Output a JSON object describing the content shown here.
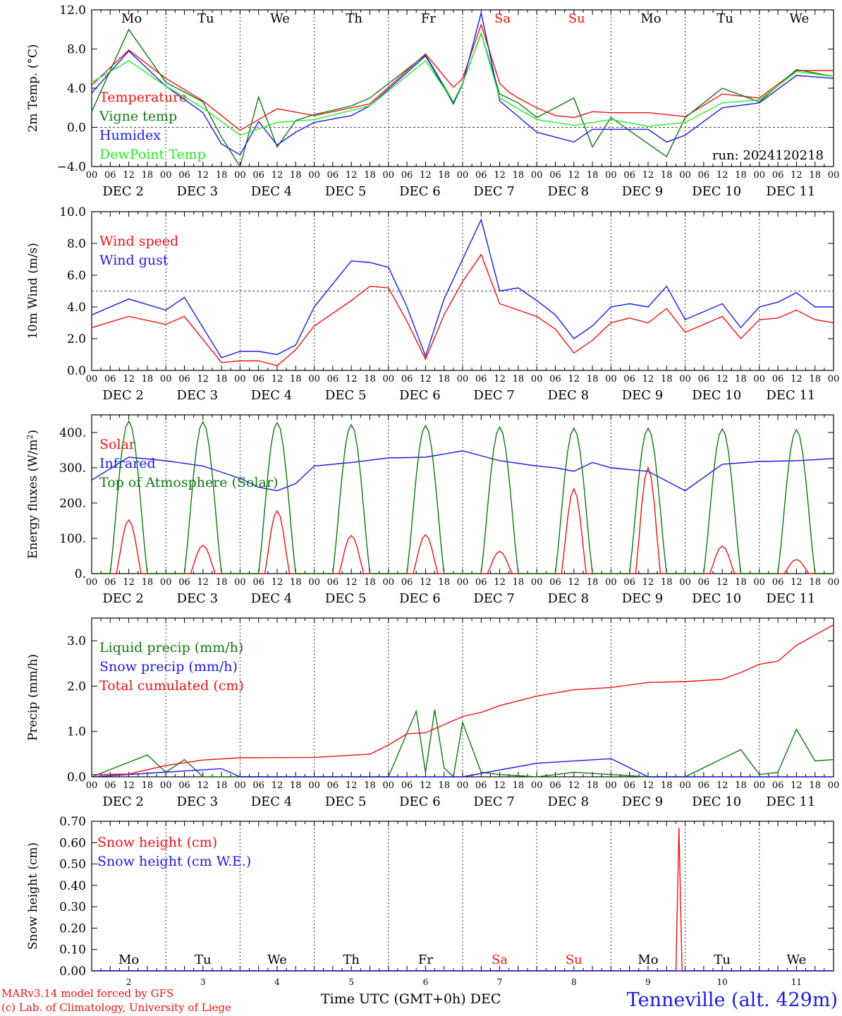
{
  "meta": {
    "run_label": "run: 2024120218",
    "x_axis_label": "Time UTC (GMT+0h) DEC",
    "model_credit": "MARv3.14 model forced by GFS",
    "lab_credit": "(c) Lab. of Climatology, University of Liege",
    "station": "Tenneville (alt. 429m)",
    "colors": {
      "red": "#ee1111",
      "blue": "#1a1ae6",
      "green": "#117711",
      "lightgreen": "#22ee22",
      "weekend": "#ee1111"
    }
  },
  "chart_data": {
    "type": "line",
    "time_axis": {
      "days": [
        2,
        3,
        4,
        5,
        6,
        7,
        8,
        9,
        10,
        11
      ],
      "day_labels": [
        "DEC  2",
        "DEC  3",
        "DEC  4",
        "DEC  5",
        "DEC  6",
        "DEC  7",
        "DEC  8",
        "DEC  9",
        "DEC 10",
        "DEC 11"
      ],
      "weekday_labels": [
        "Mo",
        "Tu",
        "We",
        "Th",
        "Fr",
        "Sa",
        "Su",
        "Mo",
        "Tu",
        "We"
      ],
      "weekend_flags": [
        false,
        false,
        false,
        false,
        false,
        true,
        true,
        false,
        false,
        false
      ],
      "hour_labels": [
        "00",
        "06",
        "12",
        "18"
      ],
      "bottom_day_numbers": [
        "2",
        "3",
        "4",
        "5",
        "6",
        "7",
        "8",
        "9",
        "10",
        "11"
      ]
    },
    "panels": [
      {
        "ylabel": "2m Temp. (°C)",
        "ylim": [
          -4,
          12
        ],
        "yticks": [
          "−4.0",
          "0.0",
          "4.0",
          "8.0",
          "12.0"
        ],
        "ytick_values": [
          -4,
          0,
          4,
          8,
          12
        ],
        "reference_line": 0,
        "series": [
          {
            "name": "Temperature",
            "color": "#ee1111",
            "x": [
              0,
              12,
              24,
              36,
              48,
              60,
              72,
              90,
              108,
              117,
              120,
              126,
              132,
              135,
              138,
              144,
              150,
              156,
              162,
              168,
              180,
              192,
              204,
              216,
              228,
              240
            ],
            "y": [
              4.3,
              7.9,
              5.0,
              2.7,
              -0.3,
              1.9,
              1.2,
              2.4,
              7.5,
              4.1,
              5.0,
              10.5,
              4.5,
              3.6,
              3.0,
              2.0,
              1.2,
              1.0,
              1.6,
              1.5,
              1.5,
              1.1,
              3.4,
              3.0,
              5.8,
              5.8
            ]
          },
          {
            "name": "Vigne temp",
            "color": "#117711",
            "x": [
              0,
              12,
              24,
              36,
              42,
              48,
              54,
              60,
              66,
              72,
              84,
              90,
              108,
              117,
              120,
              126,
              132,
              138,
              144,
              156,
              162,
              168,
              186,
              192,
              204,
              216,
              228,
              240
            ],
            "y": [
              1.6,
              10.0,
              4.6,
              2.6,
              -1.0,
              -4.0,
              3.1,
              -2.0,
              0.7,
              1.3,
              2.2,
              3.0,
              7.4,
              2.6,
              4.5,
              9.6,
              3.4,
              2.5,
              1.0,
              3.0,
              -2.0,
              1.0,
              -3.0,
              1.0,
              4.0,
              2.6,
              5.9,
              5.2
            ]
          },
          {
            "name": "Humidex",
            "color": "#1a1ae6",
            "x": [
              0,
              12,
              24,
              36,
              42,
              48,
              54,
              60,
              66,
              72,
              84,
              90,
              108,
              117,
              120,
              126,
              132,
              144,
              156,
              162,
              168,
              180,
              186,
              192,
              204,
              216,
              228,
              240
            ],
            "y": [
              3.5,
              7.8,
              4.2,
              1.5,
              -1.7,
              -2.8,
              0.6,
              -1.8,
              -0.5,
              0.5,
              1.2,
              2.2,
              7.3,
              2.4,
              4.4,
              11.7,
              2.7,
              -0.5,
              -1.5,
              -0.2,
              -0.2,
              -0.2,
              -1.5,
              -0.8,
              2.0,
              2.5,
              5.3,
              5.0
            ]
          },
          {
            "name": "DewPoint Temp",
            "color": "#22ee22",
            "x": [
              0,
              12,
              24,
              36,
              48,
              60,
              72,
              90,
              108,
              117,
              120,
              126,
              132,
              144,
              156,
              168,
              180,
              192,
              204,
              216,
              228,
              240
            ],
            "y": [
              4.6,
              6.8,
              4.2,
              2.0,
              -0.8,
              0.5,
              0.8,
              2.2,
              6.8,
              2.6,
              4.5,
              9.6,
              3.0,
              0.8,
              0.2,
              0.8,
              0.1,
              0.5,
              2.5,
              2.8,
              5.7,
              5.2
            ]
          }
        ]
      },
      {
        "ylabel": "10m Wind (m/s)",
        "ylim": [
          0,
          10
        ],
        "yticks": [
          "0.0",
          "2.0",
          "4.0",
          "6.0",
          "8.0",
          "10.0"
        ],
        "ytick_values": [
          0,
          2,
          4,
          6,
          8,
          10
        ],
        "reference_line": 5,
        "series": [
          {
            "name": "Wind speed",
            "color": "#ee1111",
            "x": [
              0,
              12,
              24,
              30,
              42,
              48,
              54,
              60,
              66,
              72,
              84,
              90,
              96,
              102,
              108,
              114,
              120,
              126,
              132,
              138,
              144,
              150,
              156,
              162,
              168,
              174,
              180,
              186,
              192,
              204,
              210,
              216,
              222,
              228,
              234,
              240
            ],
            "y": [
              2.7,
              3.4,
              2.9,
              3.4,
              0.5,
              0.6,
              0.6,
              0.3,
              1.3,
              2.8,
              4.4,
              5.3,
              5.2,
              3.1,
              0.7,
              3.5,
              5.6,
              7.3,
              4.2,
              3.8,
              3.4,
              2.6,
              1.1,
              1.9,
              3.0,
              3.3,
              3.0,
              3.9,
              2.4,
              3.4,
              2.0,
              3.2,
              3.3,
              3.8,
              3.2,
              3.0
            ]
          },
          {
            "name": "Wind gust",
            "color": "#1a1ae6",
            "x": [
              0,
              12,
              24,
              30,
              42,
              48,
              54,
              60,
              66,
              72,
              84,
              90,
              96,
              102,
              108,
              114,
              120,
              126,
              132,
              138,
              144,
              150,
              156,
              162,
              168,
              174,
              180,
              186,
              192,
              204,
              210,
              216,
              222,
              228,
              234,
              240
            ],
            "y": [
              3.5,
              4.5,
              3.8,
              4.6,
              0.8,
              1.2,
              1.2,
              1.0,
              1.6,
              4.0,
              6.9,
              6.8,
              6.5,
              4.0,
              0.9,
              4.5,
              7.0,
              9.5,
              5.0,
              5.2,
              4.4,
              3.5,
              2.0,
              2.8,
              4.0,
              4.2,
              4.0,
              5.3,
              3.2,
              4.2,
              2.7,
              4.0,
              4.3,
              4.9,
              4.0,
              4.0
            ]
          }
        ]
      },
      {
        "ylabel": "Energy fluxes (W/m2)",
        "ylim": [
          0,
          450
        ],
        "yticks": [
          "0.",
          "100.",
          "200.",
          "300.",
          "400."
        ],
        "ytick_values": [
          0,
          100,
          200,
          300,
          400
        ],
        "reference_line": null,
        "series": [
          {
            "name": "Solar",
            "color": "#ee1111",
            "noon_peaks": [
              152,
              80,
              178,
              108,
              110,
              63,
              240,
              300,
              78,
              40
            ]
          },
          {
            "name": "Infrared",
            "color": "#1a1ae6",
            "x": [
              0,
              12,
              24,
              36,
              48,
              54,
              60,
              66,
              72,
              84,
              96,
              108,
              120,
              132,
              144,
              150,
              156,
              162,
              168,
              180,
              192,
              204,
              216,
              228,
              240
            ],
            "y": [
              265,
              330,
              320,
              305,
              270,
              245,
              235,
              255,
              305,
              315,
              328,
              330,
              348,
              320,
              305,
              300,
              290,
              315,
              300,
              290,
              235,
              310,
              318,
              320,
              326
            ]
          },
          {
            "name": "Top of Atmosphere (Solar)",
            "color": "#117711",
            "noon_peaks": [
              432,
              430,
              428,
              422,
              420,
              415,
              412,
              412,
              410,
              408
            ]
          }
        ]
      },
      {
        "ylabel": "Precip (mm/h)",
        "ylim": [
          0,
          3.5
        ],
        "yticks": [
          "0.0",
          "1.0",
          "2.0",
          "3.0"
        ],
        "ytick_values": [
          0,
          1,
          2,
          3
        ],
        "reference_line": null,
        "series": [
          {
            "name": "Liquid precip (mm/h)",
            "color": "#117711",
            "x": [
              0,
              18,
              24,
              30,
              36,
              48,
              96,
              105,
              108,
              111,
              114,
              117,
              120,
              126,
              132,
              144,
              150,
              156,
              180,
              192,
              210,
              216,
              222,
              228,
              234,
              240
            ],
            "y": [
              0.0,
              0.48,
              0.1,
              0.38,
              0.0,
              0.0,
              0.0,
              1.45,
              0.1,
              1.48,
              0.2,
              0.0,
              1.2,
              0.1,
              0.05,
              0.0,
              0.05,
              0.1,
              0.0,
              0.0,
              0.6,
              0.05,
              0.1,
              1.05,
              0.35,
              0.38
            ]
          },
          {
            "name": "Snow precip (mm/h)",
            "color": "#1a1ae6",
            "x": [
              0,
              42,
              48,
              120,
              144,
              168,
              180,
              210,
              240
            ],
            "y": [
              0.0,
              0.18,
              0.0,
              0.0,
              0.3,
              0.4,
              0.0,
              0.0,
              0.0
            ]
          },
          {
            "name": "Total cumulated (cm)",
            "color": "#ee1111",
            "x": [
              0,
              12,
              24,
              36,
              48,
              72,
              90,
              96,
              102,
              108,
              120,
              126,
              132,
              144,
              156,
              168,
              180,
              192,
              204,
              210,
              216,
              222,
              228,
              240
            ],
            "y": [
              0.05,
              0.06,
              0.25,
              0.37,
              0.42,
              0.43,
              0.5,
              0.7,
              0.95,
              0.97,
              1.33,
              1.42,
              1.57,
              1.78,
              1.92,
              1.97,
              2.08,
              2.1,
              2.15,
              2.3,
              2.48,
              2.55,
              2.9,
              3.35
            ]
          }
        ]
      },
      {
        "ylabel": "Snow height (cm)",
        "ylim": [
          0,
          0.7
        ],
        "yticks": [
          "0.00",
          "0.10",
          "0.20",
          "0.30",
          "0.40",
          "0.50",
          "0.60",
          "0.70"
        ],
        "ytick_values": [
          0,
          0.1,
          0.2,
          0.3,
          0.4,
          0.5,
          0.6,
          0.7
        ],
        "reference_line": null,
        "series": [
          {
            "name": "Snow height (cm)",
            "color": "#ee1111",
            "x": [
              0,
              189,
              190,
              191,
              240
            ],
            "y": [
              0,
              0,
              0.67,
              0,
              0
            ]
          },
          {
            "name": "Snow height (cm W.E.)",
            "color": "#1a1ae6",
            "x": [
              0,
              240
            ],
            "y": [
              0,
              0
            ]
          }
        ]
      }
    ]
  }
}
